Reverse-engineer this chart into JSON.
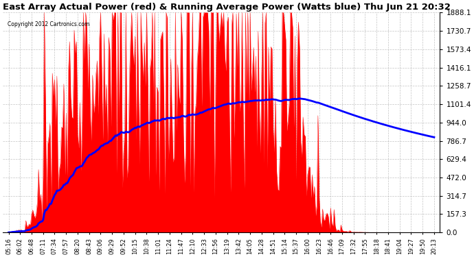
{
  "title": "East Array Actual Power (red) & Running Average Power (Watts blue) Thu Jun 21 20:32",
  "copyright": "Copyright 2012 Cartronics.com",
  "ylabel_right_ticks": [
    0.0,
    157.3,
    314.7,
    472.0,
    629.4,
    786.7,
    944.0,
    1101.4,
    1258.7,
    1416.1,
    1573.4,
    1730.7,
    1888.1
  ],
  "ylim": [
    0,
    1888.1
  ],
  "background_color": "#ffffff",
  "grid_color": "#aaaaaa",
  "bar_color": "red",
  "avg_line_color": "blue",
  "title_fontsize": 9.5,
  "x_labels": [
    "05:16",
    "06:02",
    "06:48",
    "07:11",
    "07:34",
    "07:57",
    "08:20",
    "08:43",
    "09:06",
    "09:29",
    "09:52",
    "10:15",
    "10:38",
    "11:01",
    "11:24",
    "11:47",
    "12:10",
    "12:33",
    "12:56",
    "13:19",
    "13:42",
    "14:05",
    "14:28",
    "14:51",
    "15:14",
    "15:37",
    "16:00",
    "16:23",
    "16:46",
    "17:09",
    "17:32",
    "17:55",
    "18:18",
    "18:41",
    "19:04",
    "19:27",
    "19:50",
    "20:13"
  ]
}
